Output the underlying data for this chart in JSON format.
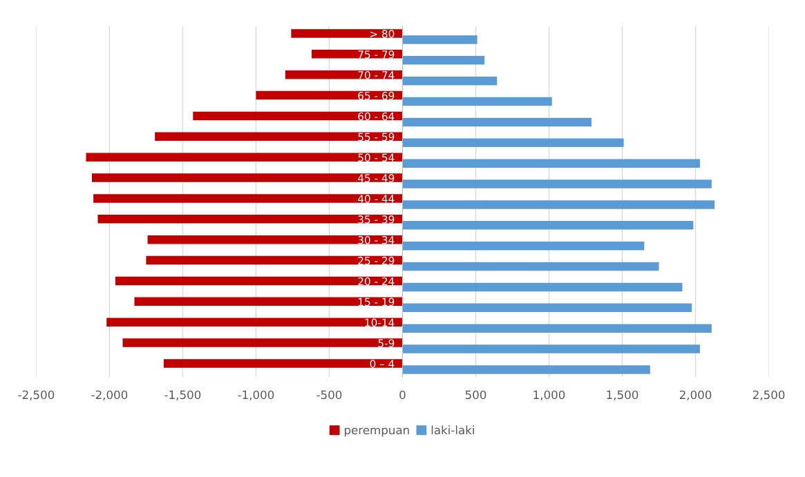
{
  "chart_data": {
    "type": "bar",
    "orientation": "horizontal",
    "categories": [
      "> 80",
      "75 - 79",
      "70 - 74",
      "65 - 69",
      "60 - 64",
      "55 - 59",
      "50 - 54",
      "45 - 49",
      "40 - 44",
      "35 - 39",
      "30 - 34",
      "25 - 29",
      "20 - 24",
      "15 - 19",
      "10-14",
      "5-9",
      "0 – 4"
    ],
    "series": [
      {
        "name": "perempuan",
        "color": "#c00000",
        "values": [
          -760,
          -620,
          -800,
          -1000,
          -1430,
          -1690,
          -2160,
          -2120,
          -2110,
          -2080,
          -1740,
          -1750,
          -1960,
          -1830,
          -2020,
          -1910,
          -1630
        ]
      },
      {
        "name": "laki-laki",
        "color": "#5b9bd5",
        "values": [
          510,
          560,
          645,
          1020,
          1290,
          1510,
          2030,
          2110,
          2130,
          1985,
          1650,
          1750,
          1910,
          1975,
          2110,
          2030,
          1690
        ]
      }
    ],
    "xlim": [
      -2500,
      2500
    ],
    "xticks": [
      {
        "value": -2500,
        "label": "-2,500"
      },
      {
        "value": -2000,
        "label": "-2,000"
      },
      {
        "value": -1500,
        "label": "-1,500"
      },
      {
        "value": -1000,
        "label": "-1,000"
      },
      {
        "value": -500,
        "label": "-500"
      },
      0,
      500,
      {
        "value": 1000,
        "label": "1,000"
      },
      {
        "value": 1500,
        "label": "1,500"
      },
      {
        "value": 2000,
        "label": "2,000"
      },
      {
        "value": 2500,
        "label": "2,500"
      }
    ],
    "grid": "x",
    "legend": "bottom"
  }
}
